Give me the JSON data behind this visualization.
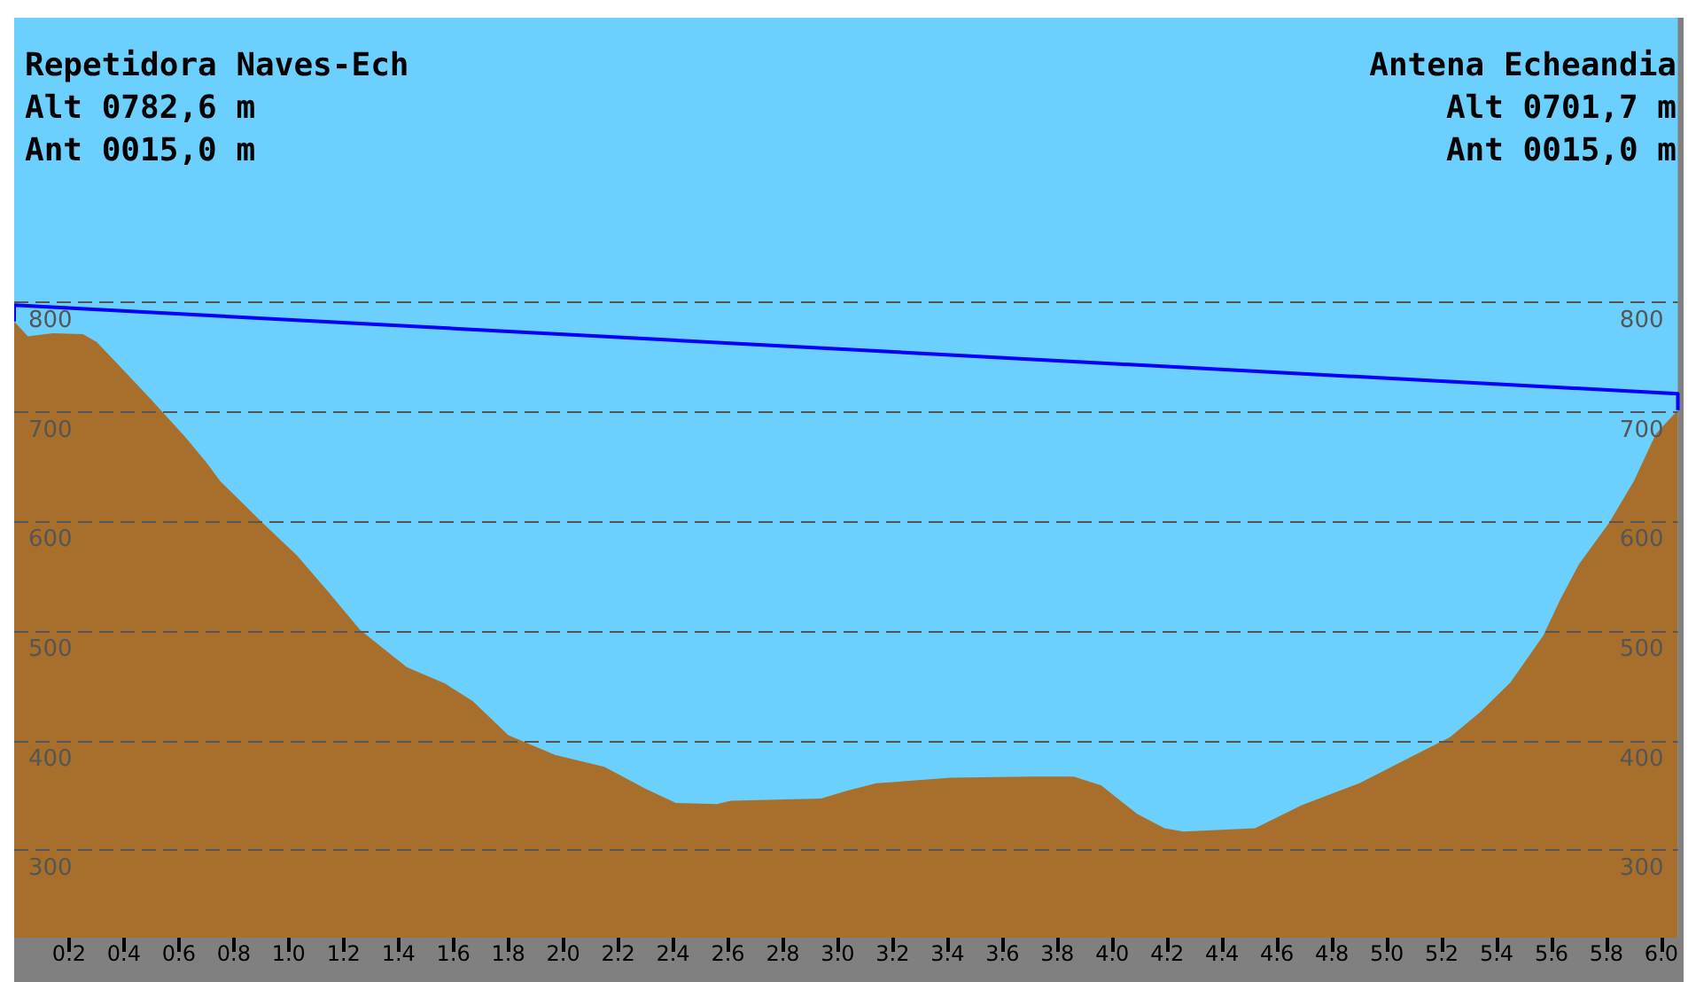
{
  "chart_data": {
    "type": "area",
    "annotations": [
      "Repetidora Naves-Ech",
      "Alt 0782,6 m",
      "Ant 0015,0 m",
      "Antena Echeandia",
      "Alt 0701,7 m",
      "Ant 0015,0 m"
    ],
    "series": [
      {
        "type": "area",
        "color": "#a86f2c",
        "x": [
          0,
          0.05,
          0.14,
          0.25,
          0.3,
          0.38,
          0.5,
          0.62,
          0.7,
          0.75,
          0.9,
          1.03,
          1.14,
          1.26,
          1.43,
          1.57,
          1.67,
          1.8,
          1.97,
          2.15,
          2.3,
          2.41,
          2.56,
          2.61,
          2.94,
          3.03,
          3.14,
          3.25,
          3.41,
          3.7,
          3.86,
          3.96,
          4.09,
          4.19,
          4.26,
          4.52,
          4.69,
          4.9,
          5.08,
          5.23,
          5.34,
          5.45,
          5.57,
          5.63,
          5.7,
          5.81,
          5.9,
          5.98,
          6.06
        ],
        "values": [
          782.6,
          769,
          772,
          771,
          764,
          743,
          711,
          678,
          654,
          637,
          600,
          569,
          537,
          501,
          467,
          452,
          436,
          405,
          387,
          376,
          356,
          343,
          342,
          345,
          347,
          354,
          361,
          363,
          366,
          367,
          367,
          359,
          333,
          320,
          317,
          320,
          341,
          361,
          384,
          403,
          426,
          453,
          496,
          528,
          561,
          599,
          637,
          680,
          701.7
        ]
      },
      {
        "type": "line",
        "color": "#0000ff",
        "x": [
          0,
          0,
          6.06,
          6.06
        ],
        "values": [
          782.6,
          797.6,
          716.7,
          701.7
        ]
      }
    ],
    "marker": "none",
    "xlim": [
      0,
      6.06
    ],
    "xticks": [
      0.2,
      0.4,
      0.6,
      0.8,
      {
        "value": 1,
        "label": "1.0"
      },
      1.2,
      1.4,
      1.6,
      1.8,
      {
        "value": 2,
        "label": "2.0"
      },
      2.2,
      2.4,
      2.6,
      2.8,
      {
        "value": 3,
        "label": "3.0"
      },
      3.2,
      3.4,
      3.6,
      3.8,
      {
        "value": 4,
        "label": "4.0"
      },
      4.2,
      4.4,
      4.6,
      4.8,
      {
        "value": 5,
        "label": "5.0"
      },
      5.2,
      5.4,
      5.6,
      5.8,
      {
        "value": 6,
        "label": "6.0"
      }
    ],
    "ylim": [
      220,
      1060
    ],
    "yticks": [
      300,
      400,
      500,
      600,
      700,
      800
    ],
    "y2lim": [
      220,
      1060
    ],
    "y2ticks": [
      300,
      400,
      500,
      600,
      700,
      800
    ],
    "grid": "y"
  }
}
